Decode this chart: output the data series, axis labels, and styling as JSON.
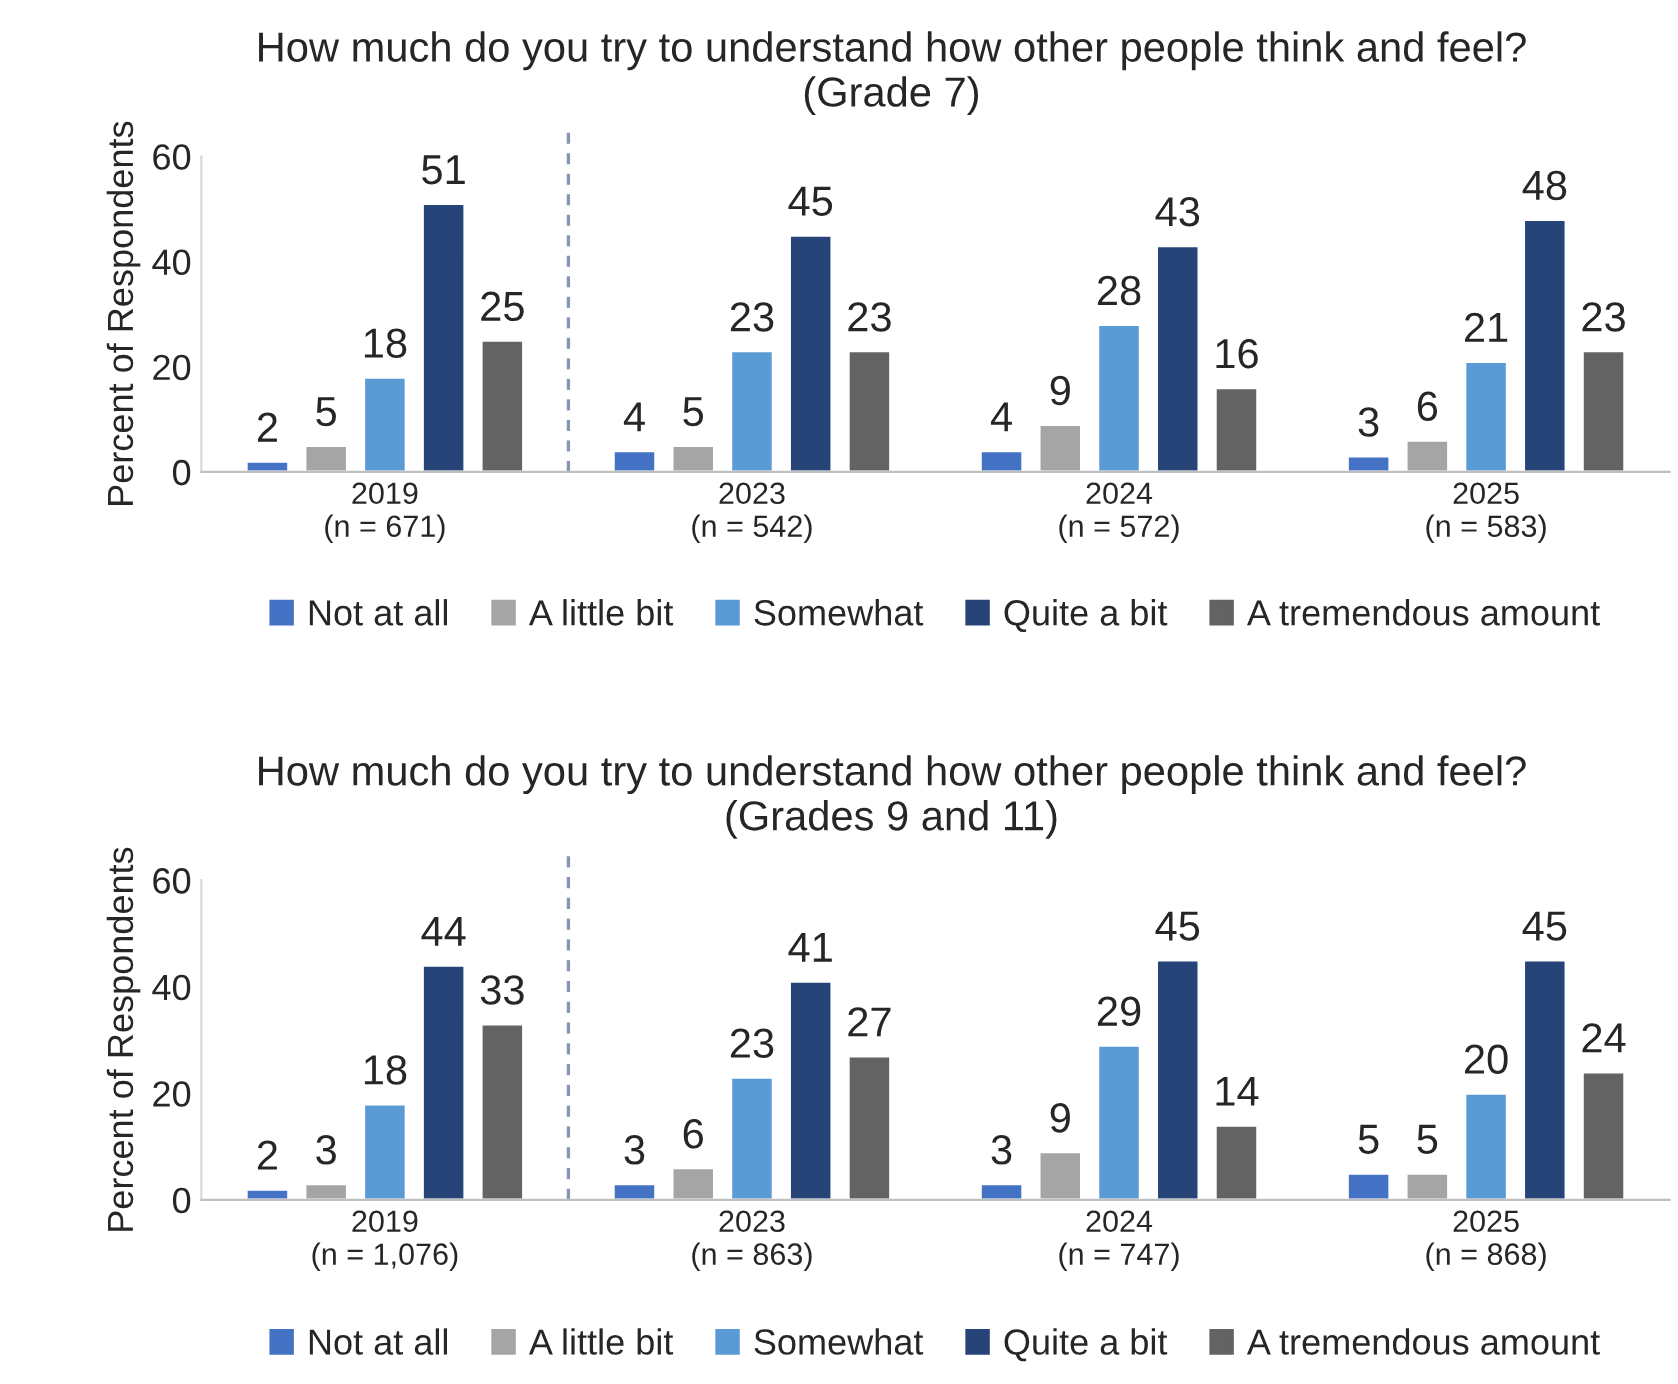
{
  "chart_data": [
    {
      "type": "bar",
      "title": "How much do you try to understand how other people think and feel?\n(Grade 7)",
      "ylabel": "Percent of Respondents",
      "categories": [
        "2019\n(n = 671)",
        "2023\n(n = 542)",
        "2024\n(n = 572)",
        "2025\n(n = 583)"
      ],
      "series": [
        {
          "name": "Not at all",
          "color": "#4472c4",
          "values": [
            2,
            4,
            4,
            3
          ]
        },
        {
          "name": "A little bit",
          "color": "#a5a5a5",
          "values": [
            5,
            5,
            9,
            6
          ]
        },
        {
          "name": "Somewhat",
          "color": "#5b9bd5",
          "values": [
            18,
            23,
            28,
            21
          ]
        },
        {
          "name": "Quite a bit",
          "color": "#264478",
          "values": [
            51,
            45,
            43,
            48
          ]
        },
        {
          "name": "A tremendous amount",
          "color": "#636363",
          "values": [
            25,
            23,
            16,
            23
          ]
        }
      ],
      "ylim": [
        0,
        60
      ],
      "yticks": [
        0,
        20,
        40,
        60
      ],
      "grid": false,
      "legend": "bottom",
      "data_labels": true
    },
    {
      "type": "bar",
      "title": "How much do you try to understand how other people think and feel?\n(Grades 9 and 11)",
      "ylabel": "Percent of Respondents",
      "categories": [
        "2019\n(n = 1,076)",
        "2023\n(n = 863)",
        "2024\n(n = 747)",
        "2025\n(n = 868)"
      ],
      "series": [
        {
          "name": "Not at all",
          "color": "#4472c4",
          "values": [
            2,
            3,
            3,
            5
          ]
        },
        {
          "name": "A little bit",
          "color": "#a5a5a5",
          "values": [
            3,
            6,
            9,
            5
          ]
        },
        {
          "name": "Somewhat",
          "color": "#5b9bd5",
          "values": [
            18,
            23,
            29,
            20
          ]
        },
        {
          "name": "Quite a bit",
          "color": "#264478",
          "values": [
            44,
            41,
            45,
            45
          ]
        },
        {
          "name": "A tremendous amount",
          "color": "#636363",
          "values": [
            33,
            27,
            14,
            24
          ]
        }
      ],
      "ylim": [
        0,
        60
      ],
      "yticks": [
        0,
        20,
        40,
        60
      ],
      "grid": false,
      "legend": "bottom",
      "data_labels": true
    }
  ]
}
